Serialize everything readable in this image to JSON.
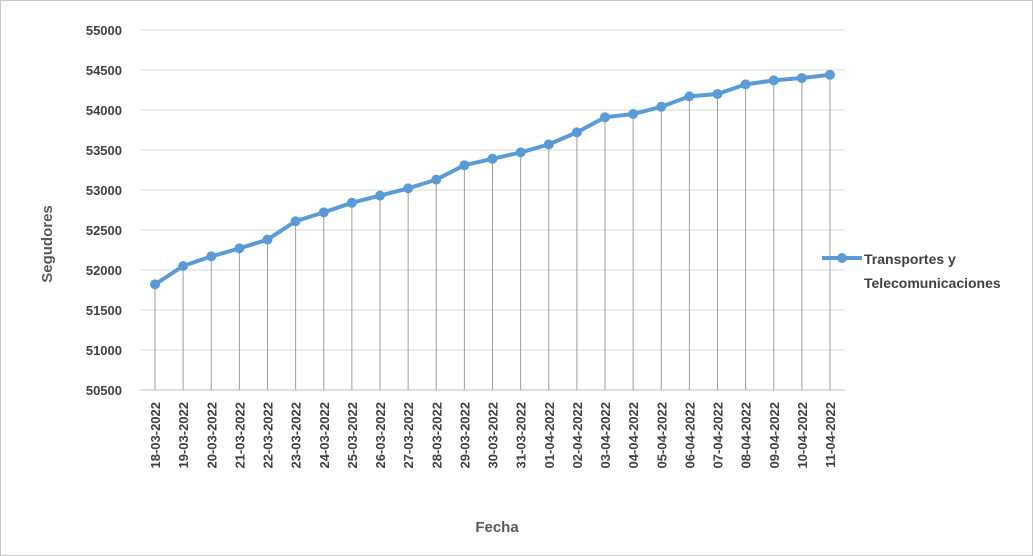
{
  "chart_data": {
    "type": "line",
    "title": "",
    "xlabel": "Fecha",
    "ylabel": "Segudores",
    "ylim": [
      50500,
      55000
    ],
    "yticks": [
      50500,
      51000,
      51500,
      52000,
      52500,
      53000,
      53500,
      54000,
      54500,
      55000
    ],
    "grid": "horizontal",
    "drop_lines": true,
    "legend_position": "right",
    "series_color": "#5b9bd5",
    "categories": [
      "18-03-2022",
      "19-03-2022",
      "20-03-2022",
      "21-03-2022",
      "22-03-2022",
      "23-03-2022",
      "24-03-2022",
      "25-03-2022",
      "26-03-2022",
      "27-03-2022",
      "28-03-2022",
      "29-03-2022",
      "30-03-2022",
      "31-03-2022",
      "01-04-2022",
      "02-04-2022",
      "03-04-2022",
      "04-04-2022",
      "05-04-2022",
      "06-04-2022",
      "07-04-2022",
      "08-04-2022",
      "09-04-2022",
      "10-04-2022",
      "11-04-2022"
    ],
    "series": [
      {
        "name": "Transportes y Telecomunicaciones",
        "legend_lines": [
          "Transportes y",
          "Telecomunicaciones"
        ],
        "values": [
          51820,
          52050,
          52170,
          52270,
          52380,
          52610,
          52720,
          52840,
          52930,
          53020,
          53130,
          53310,
          53390,
          53470,
          53570,
          53720,
          53910,
          53950,
          54040,
          54170,
          54200,
          54320,
          54370,
          54400,
          54440
        ]
      }
    ]
  }
}
